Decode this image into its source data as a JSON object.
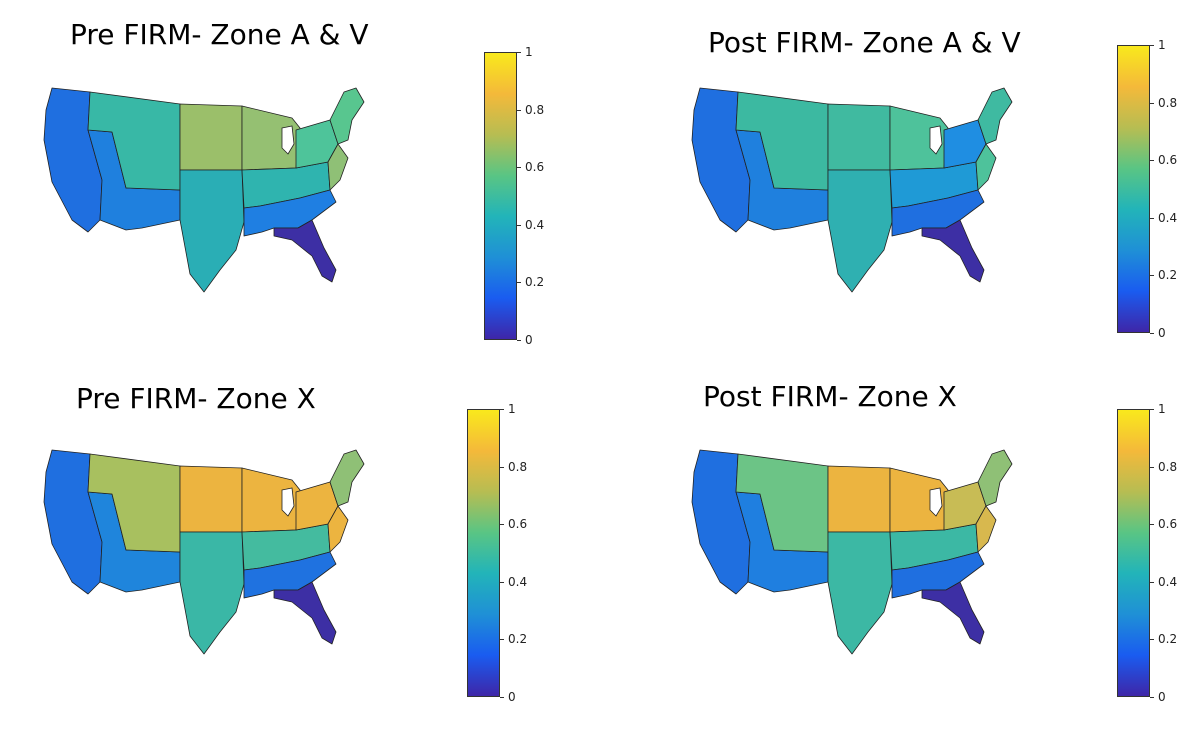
{
  "colorbar": {
    "ticks": [
      "0",
      "0.2",
      "0.4",
      "0.6",
      "0.8",
      "1"
    ],
    "colors": [
      "#3e26a8",
      "#1a5cf0",
      "#1f90d6",
      "#22b4b9",
      "#59c584",
      "#b7bd52",
      "#f4b93a",
      "#f9e91c"
    ]
  },
  "panels": [
    {
      "title": "Pre FIRM- Zone A & V",
      "fills": {
        "west_coast": "#1f6fe0",
        "southwest": "#1f80de",
        "mountain": "#38b8a6",
        "plains_n": "#9bbf6a",
        "plains_s": "#2aaeb5",
        "midwest": "#95c072",
        "ohio_valley": "#2fb4af",
        "south": "#1f7fe2",
        "florida": "#3d2fa4",
        "northeast": "#4ec49a",
        "new_england": "#58c68f",
        "mid_atl": "#8fc076"
      }
    },
    {
      "title": "Post FIRM- Zone A & V",
      "fills": {
        "west_coast": "#1f6fe0",
        "southwest": "#1f80de",
        "mountain": "#3cb9a1",
        "plains_n": "#40baa0",
        "plains_s": "#2fb0b1",
        "midwest": "#4ec29b",
        "ohio_valley": "#1f9ad6",
        "south": "#1f6fe0",
        "florida": "#3d2fa4",
        "northeast": "#1f8ee2",
        "new_england": "#3fbaa1",
        "mid_atl": "#4ec29b"
      }
    },
    {
      "title": "Pre FIRM- Zone X",
      "fills": {
        "west_coast": "#1f6fe0",
        "southwest": "#1f85dc",
        "mountain": "#a8c05f",
        "plains_n": "#ecb440",
        "plains_s": "#3ab7a6",
        "midwest": "#ecb440",
        "ohio_valley": "#44bb9f",
        "south": "#1f72e0",
        "florida": "#3d2fa4",
        "northeast": "#ecb440",
        "new_england": "#8fc076",
        "mid_atl": "#ecb440"
      }
    },
    {
      "title": "Post FIRM- Zone X",
      "fills": {
        "west_coast": "#1f6fe0",
        "southwest": "#1f7fe0",
        "mountain": "#6cc486",
        "plains_n": "#ecb440",
        "plains_s": "#3cb8a4",
        "midwest": "#ecb440",
        "ohio_valley": "#3cb8a4",
        "south": "#1f6fe0",
        "florida": "#3d2fa4",
        "northeast": "#c8bc55",
        "new_england": "#8fc076",
        "mid_atl": "#d8b84e"
      }
    }
  ]
}
